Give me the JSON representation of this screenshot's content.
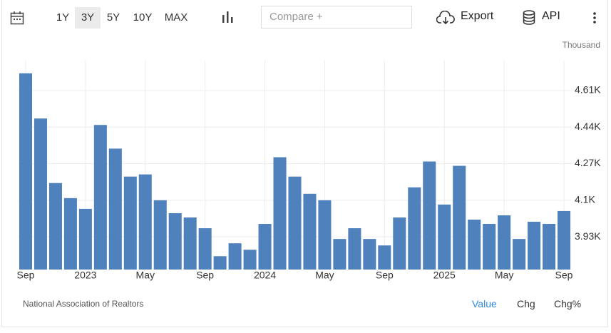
{
  "toolbar": {
    "ranges": [
      "1Y",
      "3Y",
      "5Y",
      "10Y",
      "MAX"
    ],
    "compare": "Compare +",
    "export": "Export",
    "api": "API"
  },
  "chart_data": {
    "type": "bar",
    "unit_label": "Thousand",
    "color": "#4f81bd",
    "categories": [
      "Sep",
      null,
      null,
      null,
      "2023",
      null,
      null,
      null,
      "May",
      null,
      null,
      null,
      "Sep",
      null,
      null,
      null,
      "2024",
      null,
      null,
      null,
      "May",
      null,
      null,
      null,
      "Sep",
      null,
      null,
      null,
      "2025",
      null,
      null,
      null,
      "May",
      null,
      null,
      null,
      "Sep"
    ],
    "values": [
      4.69,
      4.48,
      4.18,
      4.11,
      4.06,
      4.45,
      4.34,
      4.21,
      4.22,
      4.1,
      4.04,
      4.02,
      3.97,
      3.84,
      3.9,
      3.87,
      3.99,
      4.3,
      4.21,
      4.13,
      4.1,
      3.92,
      3.97,
      3.92,
      3.89,
      4.02,
      4.16,
      4.28,
      4.08,
      4.26,
      4.01,
      3.99,
      4.03,
      3.92,
      4.0,
      3.99,
      4.05
    ],
    "ylim": [
      3.778,
      4.749
    ],
    "yticks": [
      {
        "value": 3.93,
        "label": "3.93K"
      },
      {
        "value": 4.1,
        "label": "4.1K"
      },
      {
        "value": 4.27,
        "label": "4.27K"
      },
      {
        "value": 4.44,
        "label": "4.44K"
      },
      {
        "value": 4.61,
        "label": "4.61K"
      }
    ],
    "grid": true
  },
  "footer": {
    "source": "National Association of Realtors",
    "tabs": [
      "Value",
      "Chg",
      "Chg%"
    ]
  }
}
